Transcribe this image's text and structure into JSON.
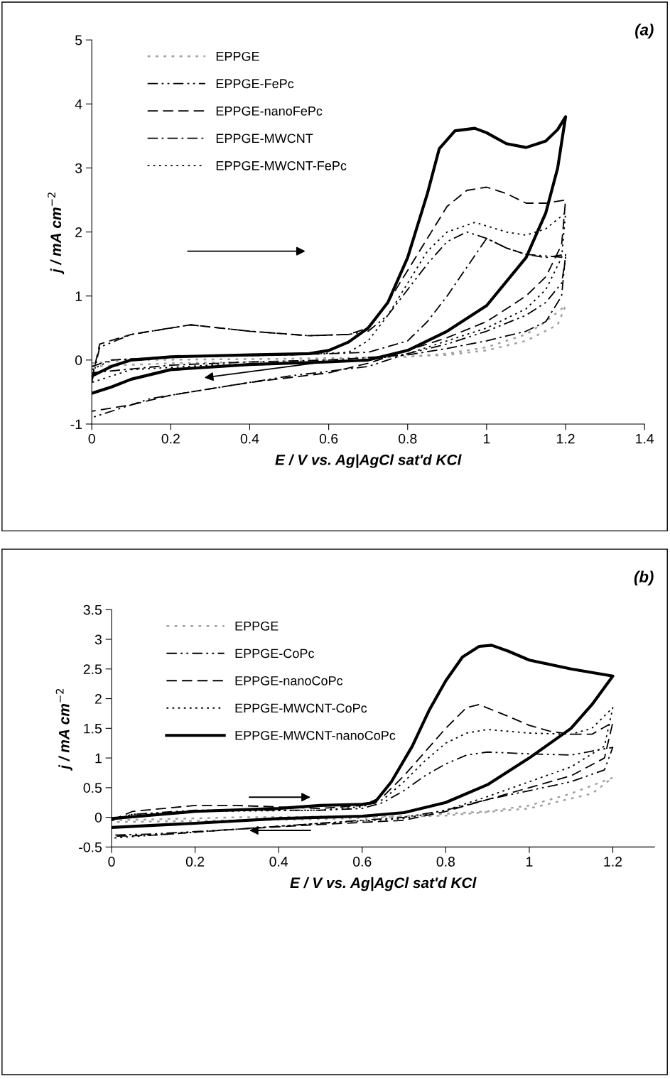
{
  "chart_data": [
    {
      "type": "line",
      "title": "(a)",
      "xlabel": "E / V vs. Ag|AgCl sat'd KCl",
      "ylabel": "j / mA cm$^{−2}$",
      "xlim": [
        0,
        1.4
      ],
      "xticks": [
        0,
        0.2,
        0.4,
        0.6,
        0.8,
        1,
        1.2,
        1.4
      ],
      "ylim": [
        -1,
        5
      ],
      "yticks": [
        {
          "value": -1,
          "label": "-1"
        },
        0,
        1,
        2,
        3,
        4,
        5
      ],
      "grid": false,
      "legend": "top left",
      "marker": "none",
      "series": [
        {
          "name": "EPPGE",
          "color": "#a0a0a0",
          "line_style": "dotted",
          "x": [
            0,
            0.1,
            0.5,
            0.8,
            0.9,
            1.0,
            1.1,
            1.15,
            1.2,
            1.18,
            1.1,
            1.0,
            0.9,
            0.7,
            0.5,
            0.2,
            0
          ],
          "values": [
            -0.05,
            0.0,
            0.02,
            0.05,
            0.1,
            0.2,
            0.4,
            0.6,
            0.85,
            0.55,
            0.3,
            0.15,
            0.08,
            0.03,
            -0.02,
            -0.05,
            -0.1
          ]
        },
        {
          "name": "EPPGE-FePc",
          "color": "#000000",
          "line_style": "dashdotdot",
          "x": [
            0,
            0.02,
            0.1,
            0.25,
            0.4,
            0.55,
            0.65,
            0.7,
            0.75,
            0.8,
            0.85,
            0.9,
            0.95,
            1.0,
            1.05,
            1.1,
            1.2,
            1.19,
            1.15,
            1.1,
            1.0,
            0.9,
            0.8,
            0.7,
            0.5,
            0.3,
            0.15,
            0
          ],
          "values": [
            -0.35,
            0.2,
            0.4,
            0.55,
            0.45,
            0.38,
            0.4,
            0.45,
            0.7,
            1.1,
            1.5,
            1.85,
            2.0,
            1.9,
            1.75,
            1.65,
            1.6,
            1.2,
            0.9,
            0.7,
            0.45,
            0.25,
            0.1,
            -0.1,
            -0.25,
            -0.45,
            -0.6,
            -0.9
          ]
        },
        {
          "name": "EPPGE-nanoFePc",
          "color": "#000000",
          "line_style": "dashed",
          "x": [
            0,
            0.02,
            0.1,
            0.25,
            0.4,
            0.55,
            0.65,
            0.7,
            0.75,
            0.8,
            0.85,
            0.9,
            0.95,
            1.0,
            1.05,
            1.1,
            1.15,
            1.2,
            1.19,
            1.15,
            1.1,
            1.0,
            0.9,
            0.8,
            0.7,
            0.6,
            0.4,
            0.2,
            0.1,
            0
          ],
          "values": [
            -0.3,
            0.25,
            0.4,
            0.55,
            0.45,
            0.38,
            0.4,
            0.5,
            0.9,
            1.4,
            1.9,
            2.4,
            2.65,
            2.7,
            2.6,
            2.45,
            2.45,
            2.5,
            1.8,
            1.3,
            1.0,
            0.6,
            0.35,
            0.15,
            -0.05,
            -0.2,
            -0.35,
            -0.55,
            -0.7,
            -0.8
          ]
        },
        {
          "name": "EPPGE-MWCNT",
          "color": "#000000",
          "line_style": "dashdot",
          "x": [
            0,
            0.05,
            0.2,
            0.5,
            0.7,
            0.8,
            0.85,
            0.9,
            0.95,
            1.0,
            1.05,
            1.1,
            1.15,
            1.2,
            1.19,
            1.15,
            1.1,
            1.0,
            0.9,
            0.8,
            0.6,
            0.4,
            0.2,
            0
          ],
          "values": [
            -0.1,
            0.0,
            0.05,
            0.08,
            0.12,
            0.3,
            0.6,
            1.0,
            1.45,
            1.9,
            1.75,
            1.65,
            1.6,
            1.65,
            1.0,
            0.6,
            0.45,
            0.3,
            0.18,
            0.08,
            0.0,
            -0.03,
            -0.08,
            -0.2
          ]
        },
        {
          "name": "EPPGE-MWCNT-FePc",
          "color": "#000000",
          "line_style": "dotted",
          "x": [
            0,
            0.05,
            0.2,
            0.5,
            0.65,
            0.7,
            0.75,
            0.8,
            0.85,
            0.9,
            0.97,
            1.05,
            1.1,
            1.15,
            1.2,
            1.19,
            1.15,
            1.1,
            1.0,
            0.9,
            0.8,
            0.7,
            0.5,
            0.3,
            0.1,
            0
          ],
          "values": [
            -0.15,
            0.0,
            0.05,
            0.08,
            0.12,
            0.3,
            0.7,
            1.2,
            1.7,
            2.0,
            2.15,
            2.0,
            1.95,
            2.05,
            2.3,
            1.6,
            1.1,
            0.8,
            0.5,
            0.3,
            0.1,
            0.0,
            -0.05,
            -0.08,
            -0.15,
            -0.35
          ]
        },
        {
          "color": "#000000",
          "line_style": "solid",
          "x": [
            0,
            0.05,
            0.1,
            0.2,
            0.4,
            0.55,
            0.6,
            0.65,
            0.7,
            0.75,
            0.8,
            0.85,
            0.88,
            0.92,
            0.97,
            1.0,
            1.05,
            1.1,
            1.15,
            1.18,
            1.2,
            1.18,
            1.15,
            1.1,
            1.0,
            0.9,
            0.8,
            0.7,
            0.6,
            0.4,
            0.2,
            0.1,
            0.05,
            0
          ],
          "values": [
            -0.25,
            -0.1,
            0.0,
            0.05,
            0.08,
            0.1,
            0.15,
            0.28,
            0.5,
            0.9,
            1.6,
            2.6,
            3.3,
            3.58,
            3.62,
            3.55,
            3.38,
            3.32,
            3.42,
            3.6,
            3.8,
            3.0,
            2.3,
            1.6,
            0.85,
            0.45,
            0.15,
            0.0,
            -0.03,
            -0.07,
            -0.15,
            -0.3,
            -0.42,
            -0.52
          ]
        }
      ]
    },
    {
      "type": "line",
      "title": "(b)",
      "xlabel": "E / V vs. Ag|AgCl sat'd KCl",
      "ylabel": "j / mA cm$^{−2}$",
      "xlim": [
        0,
        1.3
      ],
      "xticks": [
        0,
        0.2,
        0.4,
        0.6,
        0.8,
        1,
        1.2
      ],
      "ylim": [
        -0.5,
        3.5
      ],
      "yticks": [
        {
          "value": -0.5,
          "label": "-0.5"
        },
        0,
        0.5,
        1,
        1.5,
        2,
        2.5,
        3,
        3.5
      ],
      "grid": false,
      "legend": "top left",
      "marker": "none",
      "series": [
        {
          "name": "EPPGE",
          "color": "#a0a0a0",
          "line_style": "dotted",
          "x": [
            0,
            0.3,
            0.7,
            0.9,
            1.0,
            1.1,
            1.2,
            1.15,
            1.0,
            0.8,
            0.5,
            0.2,
            0
          ],
          "values": [
            -0.05,
            0.0,
            0.02,
            0.1,
            0.2,
            0.4,
            0.67,
            0.4,
            0.15,
            0.03,
            -0.03,
            -0.06,
            -0.08
          ]
        },
        {
          "name": "EPPGE-CoPc",
          "color": "#000000",
          "line_style": "dashdotdot",
          "x": [
            0,
            0.05,
            0.2,
            0.5,
            0.6,
            0.65,
            0.7,
            0.75,
            0.8,
            0.85,
            0.9,
            1.0,
            1.1,
            1.2,
            1.18,
            1.1,
            1.0,
            0.9,
            0.8,
            0.7,
            0.5,
            0.3,
            0.1,
            0
          ],
          "values": [
            -0.05,
            0.05,
            0.12,
            0.12,
            0.15,
            0.25,
            0.45,
            0.7,
            0.9,
            1.05,
            1.1,
            1.07,
            1.05,
            1.18,
            0.8,
            0.6,
            0.45,
            0.3,
            0.12,
            0.0,
            -0.1,
            -0.2,
            -0.28,
            -0.3
          ]
        },
        {
          "name": "EPPGE-nanoCoPc",
          "color": "#000000",
          "line_style": "dashed",
          "x": [
            0,
            0.05,
            0.2,
            0.3,
            0.5,
            0.6,
            0.65,
            0.7,
            0.75,
            0.8,
            0.85,
            0.88,
            0.95,
            1.0,
            1.05,
            1.1,
            1.15,
            1.2,
            1.18,
            1.1,
            1.0,
            0.9,
            0.8,
            0.7,
            0.5,
            0.3,
            0.1,
            0
          ],
          "values": [
            -0.05,
            0.1,
            0.2,
            0.2,
            0.15,
            0.2,
            0.35,
            0.7,
            1.1,
            1.5,
            1.85,
            1.9,
            1.7,
            1.55,
            1.45,
            1.4,
            1.4,
            1.6,
            1.0,
            0.7,
            0.5,
            0.3,
            0.1,
            -0.05,
            -0.12,
            -0.2,
            -0.3,
            -0.32
          ]
        },
        {
          "name": "EPPGE-MWCNT-CoPc",
          "color": "#000000",
          "line_style": "dotted",
          "x": [
            0,
            0.05,
            0.2,
            0.5,
            0.6,
            0.65,
            0.7,
            0.75,
            0.8,
            0.85,
            0.9,
            1.0,
            1.1,
            1.15,
            1.2,
            1.18,
            1.1,
            1.0,
            0.9,
            0.8,
            0.7,
            0.5,
            0.3,
            0.1,
            0
          ],
          "values": [
            -0.05,
            0.05,
            0.1,
            0.12,
            0.18,
            0.3,
            0.6,
            0.95,
            1.25,
            1.42,
            1.48,
            1.42,
            1.4,
            1.5,
            1.85,
            1.2,
            0.85,
            0.6,
            0.35,
            0.12,
            -0.02,
            -0.1,
            -0.2,
            -0.3,
            -0.35
          ]
        },
        {
          "name": "EPPGE-MWCNT-nanoCoPc",
          "color": "#000000",
          "line_style": "solid",
          "x": [
            0,
            0.2,
            0.4,
            0.5,
            0.6,
            0.63,
            0.67,
            0.72,
            0.76,
            0.8,
            0.84,
            0.88,
            0.91,
            0.95,
            1.0,
            1.1,
            1.2,
            1.15,
            1.1,
            1.0,
            0.9,
            0.8,
            0.7,
            0.6,
            0.4,
            0.2,
            0
          ],
          "values": [
            -0.02,
            0.1,
            0.15,
            0.2,
            0.22,
            0.25,
            0.6,
            1.2,
            1.8,
            2.3,
            2.7,
            2.88,
            2.9,
            2.8,
            2.65,
            2.5,
            2.38,
            1.9,
            1.5,
            1.0,
            0.55,
            0.25,
            0.08,
            0.02,
            -0.02,
            -0.1,
            -0.17
          ]
        }
      ]
    }
  ]
}
